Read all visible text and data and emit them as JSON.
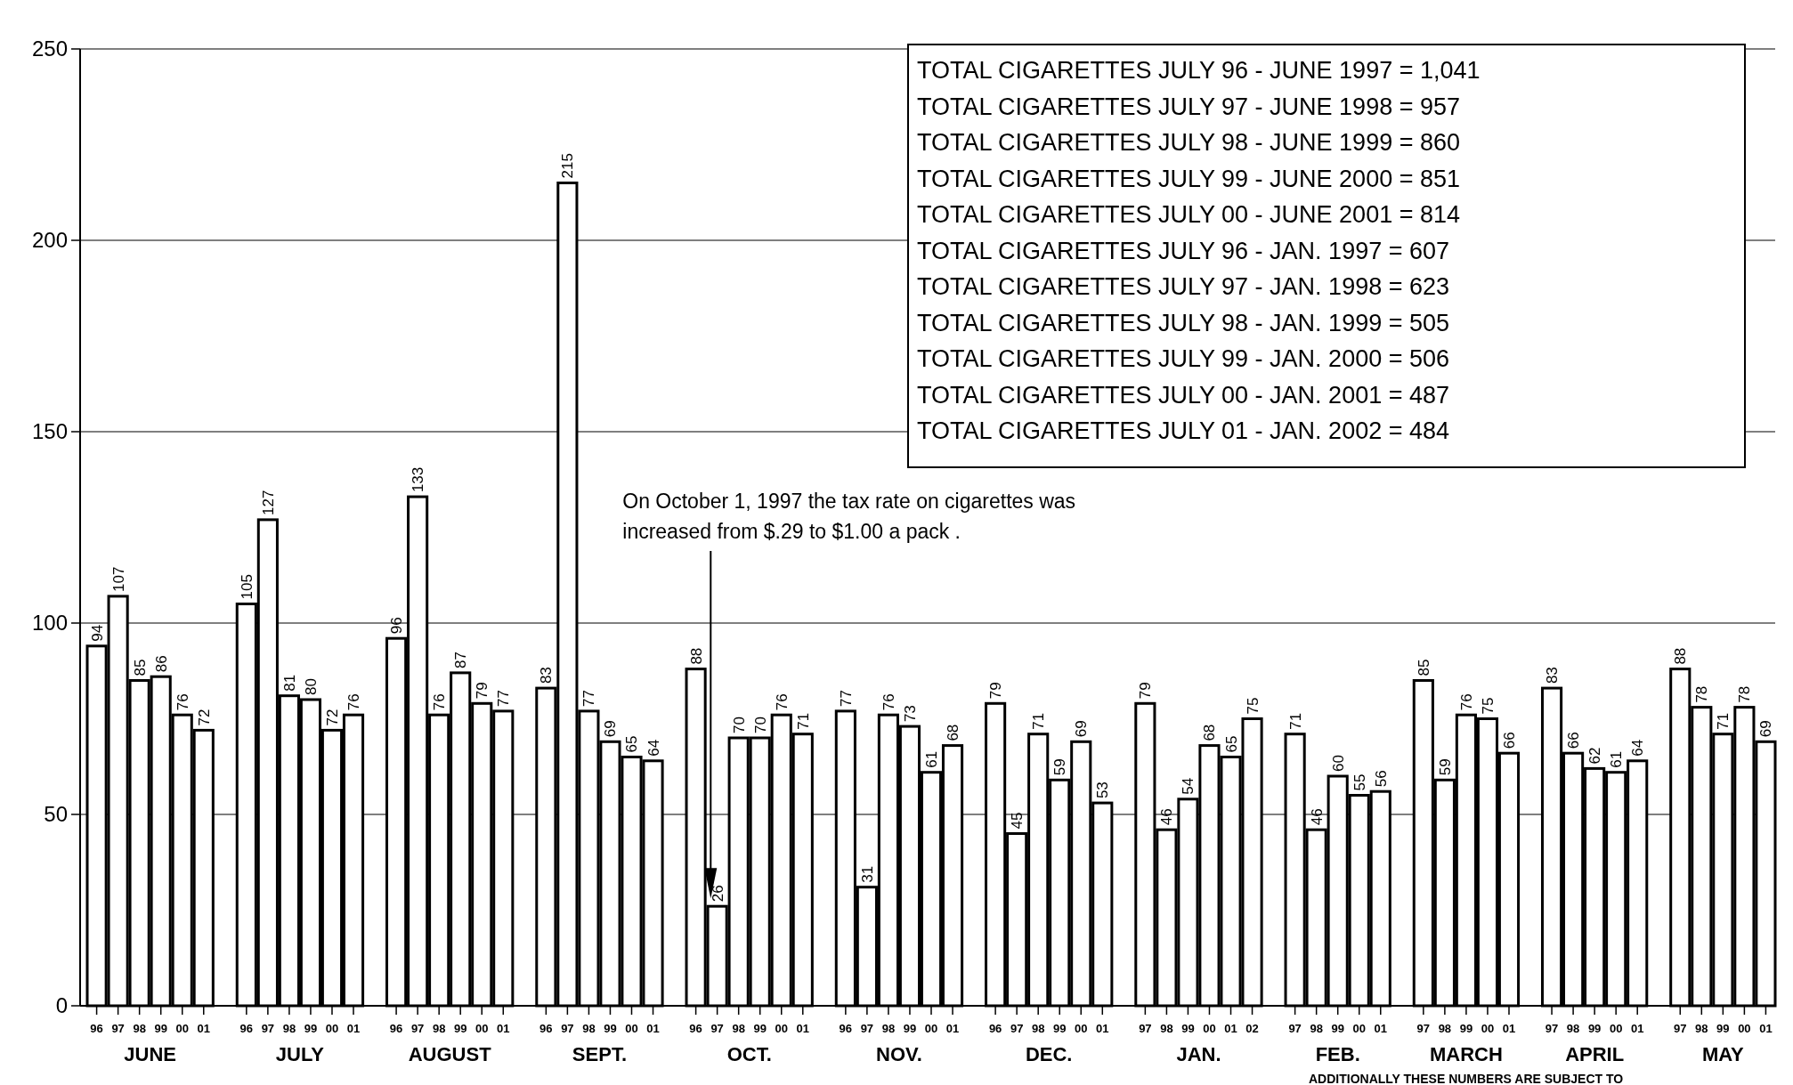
{
  "chart_data": {
    "type": "bar",
    "categories": [
      "96",
      "97",
      "98",
      "99",
      "00",
      "01",
      null,
      "96",
      "97",
      "98",
      "99",
      "00",
      "01",
      null,
      "96",
      "97",
      "98",
      "99",
      "00",
      "01",
      null,
      "96",
      "97",
      "98",
      "99",
      "00",
      "01",
      null,
      "96",
      "97",
      "98",
      "99",
      "00",
      "01",
      null,
      "96",
      "97",
      "98",
      "99",
      "00",
      "01",
      null,
      "96",
      "97",
      "98",
      "99",
      "00",
      "01",
      null,
      "97",
      "98",
      "99",
      "00",
      "01",
      "02",
      null,
      "97",
      "98",
      "99",
      "00",
      "01",
      null,
      "97",
      "98",
      "99",
      "00",
      "01",
      null,
      "97",
      "98",
      "99",
      "00",
      "01",
      null,
      "97",
      "98",
      "99",
      "00",
      "01"
    ],
    "values": [
      94,
      107,
      85,
      86,
      76,
      72,
      null,
      105,
      127,
      81,
      80,
      72,
      76,
      null,
      96,
      133,
      76,
      87,
      79,
      77,
      null,
      83,
      215,
      77,
      69,
      65,
      64,
      null,
      88,
      26,
      70,
      70,
      76,
      71,
      null,
      77,
      31,
      76,
      73,
      61,
      68,
      null,
      79,
      45,
      71,
      59,
      69,
      53,
      null,
      79,
      46,
      54,
      68,
      65,
      75,
      null,
      71,
      46,
      60,
      55,
      56,
      null,
      85,
      59,
      76,
      75,
      66,
      null,
      83,
      66,
      62,
      61,
      64,
      null,
      88,
      78,
      71,
      78,
      69
    ],
    "color": "#ffffff",
    "data_labels": true,
    "ylim": [
      0,
      250
    ],
    "yticks": [
      0,
      50,
      100,
      150,
      200,
      250
    ],
    "grid": "y",
    "annotations": [
      "JUNE",
      "JULY",
      "AUGUST",
      "SEPT.",
      "OCT.",
      "NOV.",
      "DEC.",
      "JAN.",
      "FEB.",
      "MARCH",
      "APRIL",
      "MAY",
      "On October  1, 1997 the  tax rate on cigarettes was increased from $.29 to $1.00 a pack .",
      "TOTAL CIGARETTES JULY 96 - JUNE 1997 =  1,041",
      "TOTAL CIGARETTES JULY 97 - JUNE 1998 =  957",
      "TOTAL CIGARETTES JULY 98 - JUNE 1999 =  860",
      "TOTAL CIGARETTES JULY 99 - JUNE 2000 =  851",
      "TOTAL CIGARETTES JULY 00 - JUNE 2001 =  814",
      "TOTAL CIGARETTES JULY 96 - JAN. 1997 =  607",
      "TOTAL CIGARETTES JULY 97 - JAN. 1998 =  623",
      "TOTAL CIGARETTES JULY 98 - JAN. 1999 =  505",
      "TOTAL CIGARETTES JULY 99 - JAN. 2000 =  506",
      "TOTAL CIGARETTES JULY 00 - JAN. 2001 =  487",
      "TOTAL CIGARETTES JULY 01 - JAN. 2002 =  484",
      "ADDITIONALLY THESE NUMBERS ARE SUBJECT TO"
    ]
  }
}
